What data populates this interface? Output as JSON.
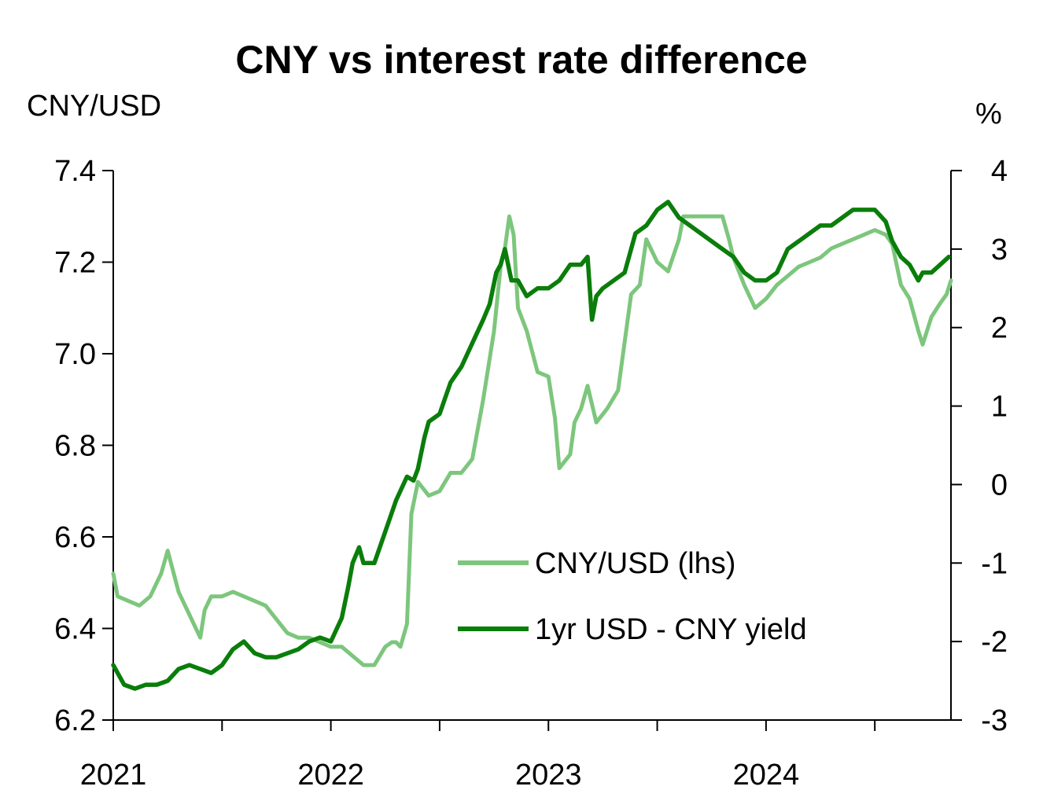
{
  "chart_data": {
    "type": "line",
    "title": "CNY vs interest rate difference",
    "y_left_label": "CNY/USD",
    "y_right_label": "%",
    "x_range": [
      2021.0,
      2024.85
    ],
    "x_ticks": [
      "2021",
      "2022",
      "2023",
      "2024"
    ],
    "y_left_range": [
      6.2,
      7.4
    ],
    "y_left_ticks": [
      "6.2",
      "6.4",
      "6.6",
      "6.8",
      "7.0",
      "7.2",
      "7.4"
    ],
    "y_right_range": [
      -3,
      4
    ],
    "y_right_ticks": [
      "-3",
      "-2",
      "-1",
      "0",
      "1",
      "2",
      "3",
      "4"
    ],
    "grid": false,
    "legend_position": "center-right",
    "series": [
      {
        "name": "CNY/USD (lhs)",
        "axis": "left",
        "color": "#7dc67d",
        "x": [
          2021.0,
          2021.02,
          2021.07,
          2021.12,
          2021.17,
          2021.22,
          2021.25,
          2021.3,
          2021.35,
          2021.4,
          2021.42,
          2021.45,
          2021.5,
          2021.55,
          2021.6,
          2021.65,
          2021.7,
          2021.75,
          2021.8,
          2021.85,
          2021.9,
          2021.95,
          2022.0,
          2022.05,
          2022.1,
          2022.15,
          2022.2,
          2022.25,
          2022.28,
          2022.3,
          2022.32,
          2022.35,
          2022.37,
          2022.4,
          2022.45,
          2022.5,
          2022.55,
          2022.6,
          2022.65,
          2022.7,
          2022.75,
          2022.78,
          2022.8,
          2022.82,
          2022.84,
          2022.86,
          2022.9,
          2022.95,
          2023.0,
          2023.03,
          2023.05,
          2023.1,
          2023.12,
          2023.15,
          2023.18,
          2023.22,
          2023.27,
          2023.32,
          2023.38,
          2023.42,
          2023.45,
          2023.5,
          2023.55,
          2023.6,
          2023.62,
          2023.65,
          2023.7,
          2023.75,
          2023.8,
          2023.83,
          2023.85,
          2023.9,
          2023.95,
          2024.0,
          2024.05,
          2024.1,
          2024.15,
          2024.2,
          2024.25,
          2024.3,
          2024.35,
          2024.4,
          2024.45,
          2024.5,
          2024.55,
          2024.58,
          2024.62,
          2024.66,
          2024.7,
          2024.72,
          2024.76,
          2024.8,
          2024.83,
          2024.85
        ],
        "values": [
          6.52,
          6.47,
          6.46,
          6.45,
          6.47,
          6.52,
          6.57,
          6.48,
          6.43,
          6.38,
          6.44,
          6.47,
          6.47,
          6.48,
          6.47,
          6.46,
          6.45,
          6.42,
          6.39,
          6.38,
          6.38,
          6.37,
          6.36,
          6.36,
          6.34,
          6.32,
          6.32,
          6.36,
          6.37,
          6.37,
          6.36,
          6.41,
          6.65,
          6.72,
          6.69,
          6.7,
          6.74,
          6.74,
          6.77,
          6.9,
          7.05,
          7.19,
          7.23,
          7.3,
          7.26,
          7.1,
          7.05,
          6.96,
          6.95,
          6.86,
          6.75,
          6.78,
          6.85,
          6.88,
          6.93,
          6.85,
          6.88,
          6.92,
          7.13,
          7.15,
          7.25,
          7.2,
          7.18,
          7.25,
          7.3,
          7.3,
          7.3,
          7.3,
          7.3,
          7.25,
          7.21,
          7.15,
          7.1,
          7.12,
          7.15,
          7.17,
          7.19,
          7.2,
          7.21,
          7.23,
          7.24,
          7.25,
          7.26,
          7.27,
          7.26,
          7.24,
          7.15,
          7.12,
          7.05,
          7.02,
          7.08,
          7.11,
          7.13,
          7.16
        ]
      },
      {
        "name": "1yr USD - CNY yield",
        "axis": "right",
        "color": "#0a7d0a",
        "x": [
          2021.0,
          2021.02,
          2021.05,
          2021.1,
          2021.15,
          2021.2,
          2021.25,
          2021.3,
          2021.35,
          2021.4,
          2021.45,
          2021.5,
          2021.55,
          2021.6,
          2021.65,
          2021.7,
          2021.75,
          2021.8,
          2021.85,
          2021.9,
          2021.95,
          2022.0,
          2022.05,
          2022.08,
          2022.1,
          2022.13,
          2022.15,
          2022.2,
          2022.25,
          2022.3,
          2022.35,
          2022.38,
          2022.4,
          2022.43,
          2022.45,
          2022.5,
          2022.55,
          2022.6,
          2022.65,
          2022.7,
          2022.73,
          2022.76,
          2022.78,
          2022.8,
          2022.83,
          2022.86,
          2022.9,
          2022.95,
          2023.0,
          2023.05,
          2023.1,
          2023.15,
          2023.18,
          2023.2,
          2023.2,
          2023.22,
          2023.25,
          2023.3,
          2023.35,
          2023.4,
          2023.45,
          2023.5,
          2023.55,
          2023.6,
          2023.65,
          2023.7,
          2023.75,
          2023.8,
          2023.85,
          2023.9,
          2023.95,
          2024.0,
          2024.05,
          2024.1,
          2024.15,
          2024.2,
          2024.25,
          2024.3,
          2024.35,
          2024.4,
          2024.45,
          2024.5,
          2024.55,
          2024.58,
          2024.62,
          2024.66,
          2024.7,
          2024.72,
          2024.76,
          2024.8,
          2024.84
        ],
        "values": [
          -2.3,
          -2.4,
          -2.55,
          -2.6,
          -2.55,
          -2.55,
          -2.5,
          -2.35,
          -2.3,
          -2.35,
          -2.4,
          -2.3,
          -2.1,
          -2.0,
          -2.15,
          -2.2,
          -2.2,
          -2.15,
          -2.1,
          -2.0,
          -1.95,
          -2.0,
          -1.7,
          -1.3,
          -1.0,
          -0.8,
          -1.0,
          -1.0,
          -0.6,
          -0.2,
          0.1,
          0.05,
          0.2,
          0.6,
          0.8,
          0.9,
          1.3,
          1.5,
          1.8,
          2.1,
          2.3,
          2.7,
          2.8,
          3.0,
          2.6,
          2.6,
          2.4,
          2.5,
          2.5,
          2.6,
          2.8,
          2.8,
          2.9,
          2.1,
          2.1,
          2.4,
          2.5,
          2.6,
          2.7,
          3.2,
          3.3,
          3.5,
          3.6,
          3.4,
          3.3,
          3.2,
          3.1,
          3.0,
          2.9,
          2.7,
          2.6,
          2.6,
          2.7,
          3.0,
          3.1,
          3.2,
          3.3,
          3.3,
          3.4,
          3.5,
          3.5,
          3.5,
          3.35,
          3.1,
          2.9,
          2.8,
          2.6,
          2.7,
          2.7,
          2.8,
          2.9
        ]
      }
    ]
  }
}
